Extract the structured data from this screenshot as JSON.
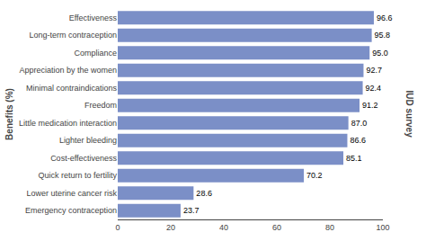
{
  "chart_data": {
    "type": "bar",
    "orientation": "horizontal",
    "categories": [
      "Emergency contraception",
      "Lower uterine cancer risk",
      "Quick return to fertility",
      "Cost-effectiveness",
      "Lighter bleeding",
      "Little medication interaction",
      "Freedom",
      "Minimal contraindications",
      "Appreciation by the women",
      "Compliance",
      "Long-term contraception",
      "Effectiveness"
    ],
    "values": [
      23.7,
      28.6,
      70.2,
      85.1,
      86.6,
      87.0,
      91.2,
      92.4,
      92.7,
      95.0,
      95.8,
      96.6
    ],
    "value_labels": [
      "23.7",
      "28.6",
      "70.2",
      "85.1",
      "86.6",
      "87.0",
      "91.2",
      "92.4",
      "92.7",
      "95.0",
      "95.8",
      "96.6"
    ],
    "data_labels": true,
    "color": "#7b8fc7",
    "ylabel": "Benefits (%)",
    "annotations": [
      "IUD survey"
    ],
    "xlim": [
      0,
      100
    ],
    "xticks": [
      0,
      20,
      40,
      60,
      80,
      100
    ],
    "grid": false
  }
}
